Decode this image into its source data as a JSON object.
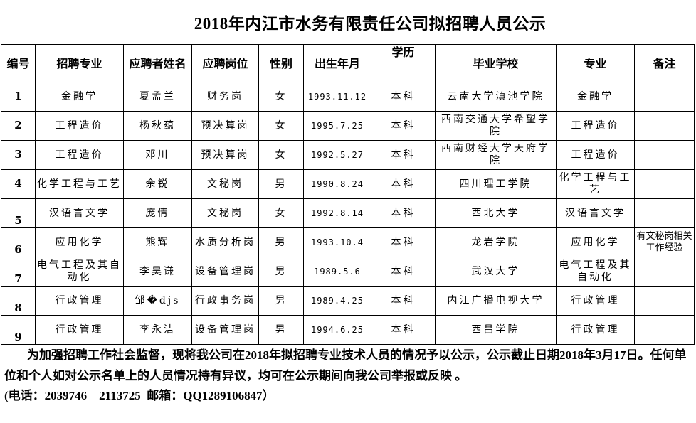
{
  "title": "2018年内江市水务有限责任公司拟招聘人员公示",
  "table": {
    "headers": [
      "编号",
      "招聘专业",
      "应聘者姓名",
      "应聘岗位",
      "性别",
      "出生年月",
      "学历",
      "毕业学校",
      "专业",
      "备注"
    ],
    "rows": [
      {
        "no": "1",
        "major": "金融学",
        "name": "夏孟兰",
        "post": "财务岗",
        "gender": "女",
        "birth": "1993.11.12",
        "edu": "本科",
        "school": "云南大学滇池学院",
        "spec": "金融学",
        "note": ""
      },
      {
        "no": "2",
        "major": "工程造价",
        "name": "杨秋蕴",
        "post": "预决算岗",
        "gender": "女",
        "birth": "1995.7.25",
        "edu": "本科",
        "school": "西南交通大学希望学院",
        "spec": "工程造价",
        "note": ""
      },
      {
        "no": "3",
        "major": "工程造价",
        "name": "邓川",
        "post": "预决算岗",
        "gender": "女",
        "birth": "1992.5.27",
        "edu": "本科",
        "school": "西南财经大学天府学院",
        "spec": "工程造价",
        "note": ""
      },
      {
        "no": "4",
        "major": "化学工程与工艺",
        "name": "余锐",
        "post": "文秘岗",
        "gender": "男",
        "birth": "1990.8.24",
        "edu": "本科",
        "school": "四川理工学院",
        "spec": "化学工程与工艺",
        "note": ""
      },
      {
        "no": "5",
        "major": "汉语言文学",
        "name": "庞倩",
        "post": "文秘岗",
        "gender": "女",
        "birth": "1992.8.14",
        "edu": "本科",
        "school": "西北大学",
        "spec": "汉语言文学",
        "note": ""
      },
      {
        "no": "6",
        "major": "应用化学",
        "name": "熊辉",
        "post": "水质分析岗",
        "gender": "男",
        "birth": "1993.10.4",
        "edu": "本科",
        "school": "龙岩学院",
        "spec": "应用化学",
        "note": "有文秘岗相关工作经验"
      },
      {
        "no": "7",
        "major": "电气工程及其自动化",
        "name": "李昊谦",
        "post": "设备管理岗",
        "gender": "男",
        "birth": "1989.5.6",
        "edu": "本科",
        "school": "武汉大学",
        "spec": "电气工程及其自动化",
        "note": ""
      },
      {
        "no": "8",
        "major": "行政管理",
        "name": "邹�djs",
        "post": "行政事务岗",
        "gender": "男",
        "birth": "1989.4.25",
        "edu": "本科",
        "school": "内江广播电视大学",
        "spec": "行政管理",
        "note": ""
      },
      {
        "no": "9",
        "major": "行政管理",
        "name": "李永洁",
        "post": "设备管理岗",
        "gender": "男",
        "birth": "1994.6.25",
        "edu": "本科",
        "school": "西昌学院",
        "spec": "行政管理",
        "note": ""
      }
    ]
  },
  "footer": {
    "paragraph": "为加强招聘工作社会监督，现将我公司在2018年拟招聘专业技术人员的情况予以公示，公示截止日期2018年3月17日。任何单位和个人如对公示名单上的人员情况持有异议，均可在公示期间向我公司举报或反映 。",
    "contact": "(电话：2039746    2113725  邮箱：QQ1289106847）"
  }
}
